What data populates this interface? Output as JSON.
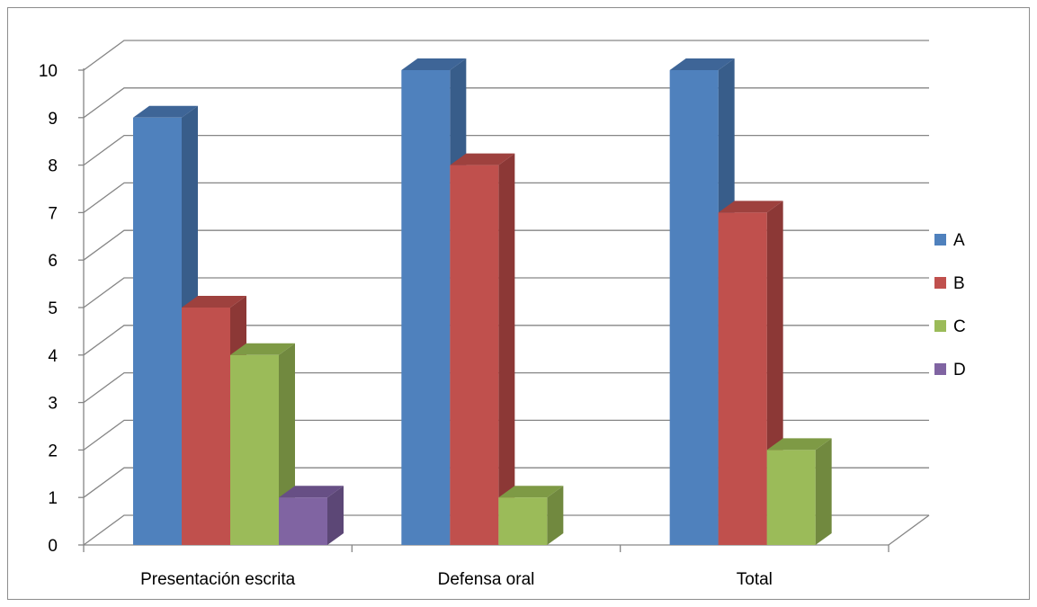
{
  "chart_data": {
    "type": "bar",
    "title": "",
    "xlabel": "",
    "ylabel": "",
    "categories": [
      "Presentación escrita",
      "Defensa oral",
      "Total"
    ],
    "series": [
      {
        "name": "A",
        "values": [
          9,
          10,
          10
        ],
        "color": "#4F81BD",
        "side_color": "#385D8A",
        "top_color": "#3E6597"
      },
      {
        "name": "B",
        "values": [
          5,
          8,
          7
        ],
        "color": "#C0504D",
        "side_color": "#8C3836",
        "top_color": "#9E413E"
      },
      {
        "name": "C",
        "values": [
          4,
          1,
          2
        ],
        "color": "#9BBB59",
        "side_color": "#71893F",
        "top_color": "#7E9A45"
      },
      {
        "name": "D",
        "values": [
          1,
          0,
          0
        ],
        "color": "#8064A2",
        "side_color": "#5C4776",
        "top_color": "#674F85"
      }
    ],
    "ylim": [
      0,
      10
    ],
    "yticks": [
      0,
      1,
      2,
      3,
      4,
      5,
      6,
      7,
      8,
      9,
      10
    ],
    "grid": true,
    "three_d": true,
    "legend_position": "right"
  }
}
